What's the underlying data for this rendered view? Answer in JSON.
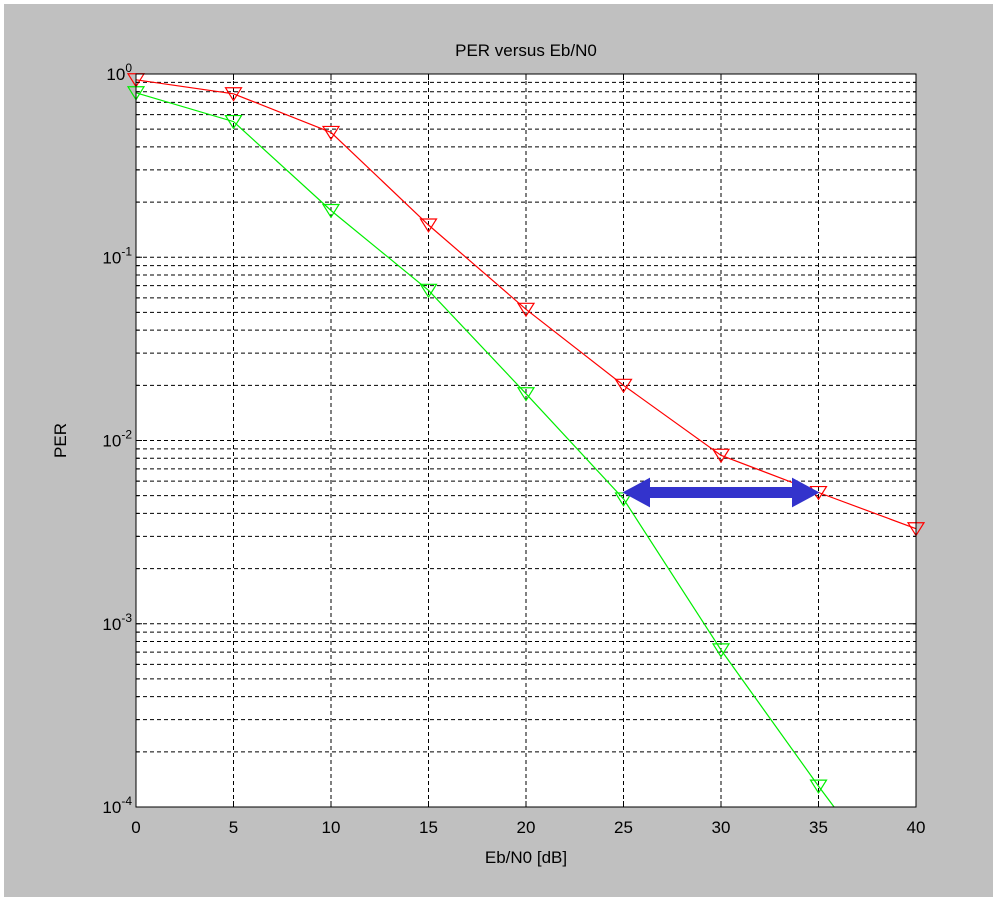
{
  "chart_data": {
    "type": "line",
    "title": "PER versus Eb/N0",
    "xlabel": "Eb/N0 [dB]",
    "ylabel": "PER",
    "xlim": [
      0,
      40
    ],
    "ylim": [
      0.0001,
      1
    ],
    "yscale": "log",
    "grid": true,
    "xticks": [
      0,
      5,
      10,
      15,
      20,
      25,
      30,
      35,
      40
    ],
    "xtick_labels": [
      "0",
      "5",
      "10",
      "15",
      "20",
      "25",
      "30",
      "35",
      "40"
    ],
    "yticks": [
      {
        "value": 1,
        "base": "10",
        "exp": "0"
      },
      {
        "value": 0.1,
        "base": "10",
        "exp": "-1"
      },
      {
        "value": 0.01,
        "base": "10",
        "exp": "-2"
      },
      {
        "value": 0.001,
        "base": "10",
        "exp": "-3"
      },
      {
        "value": 0.0001,
        "base": "10",
        "exp": "-4"
      }
    ],
    "series": [
      {
        "color": "#ff0000",
        "marker": "triangle-down",
        "x": [
          0,
          5,
          10,
          15,
          20,
          25,
          30,
          35,
          40
        ],
        "y": [
          0.93,
          0.78,
          0.48,
          0.15,
          0.052,
          0.02,
          0.0083,
          0.0052,
          0.0033
        ]
      },
      {
        "color": "#00ee00",
        "marker": "triangle-down",
        "x": [
          0,
          5,
          10,
          15,
          20,
          25,
          30,
          35,
          35.8
        ],
        "y": [
          0.79,
          0.55,
          0.18,
          0.066,
          0.018,
          0.0048,
          0.00072,
          0.00013,
          0.0001
        ],
        "marker_count": 8
      }
    ],
    "annotations": [
      {
        "type": "double-arrow",
        "color": "#3333cc",
        "x_from": 25,
        "x_to": 35,
        "y": 0.0052
      }
    ]
  }
}
